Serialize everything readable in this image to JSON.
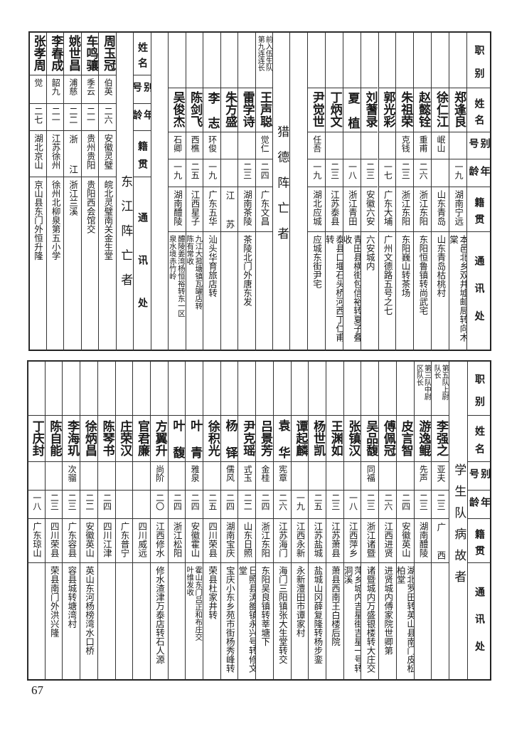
{
  "headers": {
    "position": "职别",
    "name": "姓名",
    "alias": "别号",
    "age": "年龄",
    "native_place": "籍贯",
    "address": "通讯处"
  },
  "top": {
    "groups": [
      {
        "title": "",
        "people": [
          {
            "position": "",
            "name": "郑逢良",
            "alias": "",
            "age": "一九",
            "native_place": "湖南宁远",
            "address": "本邑北乡双井墟邮局转向木棠"
          },
          {
            "position": "",
            "name": "徐仁江",
            "alias": "岷山",
            "age": "",
            "native_place": "山东青岛",
            "address": "山东青岛枯桃村"
          },
          {
            "position": "",
            "name": "赵懿铨",
            "alias": "重甫",
            "age": "二六",
            "native_place": "浙江东阳",
            "address": "东阳恒鲁镇转尚武宅"
          },
          {
            "position": "",
            "name": "朱祖荣",
            "alias": "克钱",
            "age": "二三",
            "native_place": "浙江东阳",
            "address": "东阳巍山转茶场"
          },
          {
            "position": "",
            "name": "郭光彩",
            "alias": "",
            "age": "一七",
            "native_place": "广东大埔",
            "address": "广州文德路五号之七"
          },
          {
            "position": "",
            "name": "刘蓍录",
            "alias": "",
            "age": "二三",
            "native_place": "安徽六安",
            "address": "六安城内"
          },
          {
            "position": "",
            "name": "夏植",
            "alias": "",
            "age": "一八",
            "native_place": "浙江青田",
            "address": "青田县横街包信裕转夏子叠收"
          },
          {
            "position": "",
            "name": "丁炳文",
            "alias": "",
            "age": "二三",
            "native_place": "江苏泰县",
            "address": "泰县口堰石头桥河西丁仁甫转"
          },
          {
            "position": "",
            "name": "尹觉世",
            "alias": "任吾",
            "age": "一九",
            "native_place": "湖北应城",
            "address": "应城东街尹宅"
          }
        ]
      },
      {
        "title": "猎德阵亡者",
        "people": [
          {
            "position": "前入伍生队\n第九连连长",
            "name": "王声聪",
            "alias": "觉仁",
            "age": "二四",
            "native_place": "广东文昌",
            "address": ""
          },
          {
            "position": "",
            "name": "雷学诗",
            "alias": "",
            "age": "二三",
            "native_place": "湖南茶陵",
            "address": "茶陵北门外唐东发"
          },
          {
            "position": "",
            "name": "朱方盛",
            "alias": "",
            "age": "",
            "native_place": "江苏",
            "address": ""
          },
          {
            "position": "",
            "name": "李志",
            "alias": "环俊",
            "age": "一九",
            "native_place": "广东五华",
            "address": "汕头华育旅店转"
          },
          {
            "position": "",
            "name": "陈剑飞",
            "alias": "西樵",
            "age": "二五",
            "native_place": "江西星子",
            "address": "九江大菰塘镇瓦罐店转\n陈有常收"
          },
          {
            "position": "",
            "name": "吴俊杰",
            "alias": "石卿",
            "age": "一九",
            "native_place": "湖南醴陵",
            "address": "醴陵姜湾杨恒裕转东一区\n泉水境赤竹岭"
          }
        ]
      },
      {
        "title": "东江阵亡者",
        "people": [
          {
            "name": "周玉冠",
            "alias": "伯英",
            "age": "二六",
            "native_place": "安徽灵璧",
            "address": "皖北灵璧南关金生堂"
          },
          {
            "name": "车鸣骧",
            "alias": "季云",
            "age": "二一",
            "native_place": "贵州贵阳",
            "address": "贵阳西会馆交"
          },
          {
            "name": "姚世昌",
            "alias": "浦慈",
            "age": "二二",
            "native_place": "浙江",
            "address": "浙江兰溪"
          },
          {
            "name": "李春成",
            "alias": "韶九",
            "age": "二一",
            "native_place": "江苏徐州",
            "address": "徐州北柳泉第五小学"
          },
          {
            "name": "张孝周",
            "alias": "觉",
            "age": "二七",
            "native_place": "湖北京山",
            "address": "京山县东门外恒升隆"
          }
        ]
      }
    ]
  },
  "bottom": {
    "title": "学生队病故者",
    "people": [
      {
        "position": "第五队上尉\n队长",
        "name": "李强之",
        "alias": "亚夫",
        "age": "二三",
        "native_place": "广西",
        "address": ""
      },
      {
        "position": "第三队中尉\n区队长",
        "name": "游逸鲲",
        "alias": "先声",
        "age": "二三",
        "native_place": "湖南醴陵",
        "address": ""
      },
      {
        "position": "",
        "name": "皮言智",
        "alias": "",
        "age": "二四",
        "native_place": "安徽英山",
        "address": "湖北罗田转英山县南门皮松柏堂"
      },
      {
        "position": "",
        "name": "傅佩冠",
        "alias": "",
        "age": "二六",
        "native_place": "江西进贤",
        "address": "进贤城内傅家院世卿第"
      },
      {
        "position": "",
        "name": "吴品馥",
        "alias": "同福",
        "age": "二三",
        "native_place": "浙江诸暨",
        "address": "诸暨城内万盛银楼转大庄交"
      },
      {
        "position": "",
        "name": "张镇汉",
        "alias": "",
        "age": "一八",
        "native_place": "江西萍乡",
        "address": "萍乡城内吉星街吉星一号转洞溪"
      },
      {
        "position": "",
        "name": "王渊如",
        "alias": "",
        "age": "二三",
        "native_place": "江苏萧县",
        "address": "萧县西南王白楼后院"
      },
      {
        "position": "",
        "name": "杨世凯",
        "alias": "",
        "age": "二五",
        "native_place": "江苏盐城",
        "address": "盐城山冈薛复隆转杨步銮"
      },
      {
        "position": "",
        "name": "谭起麟",
        "alias": "",
        "age": "一九",
        "native_place": "江西永新",
        "address": "永新澧田市谭家村"
      },
      {
        "position": "",
        "name": "袁华",
        "alias": "宪章",
        "age": "二六",
        "native_place": "江苏海门",
        "address": "海门三阳镇张大生堂转交"
      },
      {
        "position": "",
        "name": "吕景芳",
        "alias": "金桂",
        "age": "二四",
        "native_place": "浙江东阳",
        "address": "东阳吴良镇转莘塘下"
      },
      {
        "position": "",
        "name": "尹克瑶",
        "alias": "式玉",
        "age": "二二",
        "native_place": "山东日照",
        "address": "日照县涛雒镇永兴号转修文堂"
      },
      {
        "position": "",
        "name": "杨铎",
        "alias": "儒风",
        "age": "二四",
        "native_place": "湖南宝庆",
        "address": "宝庆小东乡苑市街杨秀峰转"
      },
      {
        "position": "",
        "name": "徐积光",
        "alias": "",
        "age": "二五",
        "native_place": "四川荣县",
        "address": "荣县杜家井转"
      },
      {
        "position": "",
        "name": "叶青",
        "alias": "雅泉",
        "age": "二四",
        "native_place": "安徽霍山",
        "address": "霍山东门吕正和布庄交\n叶维发收"
      },
      {
        "position": "",
        "name": "叶馥",
        "alias": "",
        "age": "二四",
        "native_place": "浙江松阳",
        "address": ""
      },
      {
        "position": "",
        "name": "方翼升",
        "alias": "尚阶",
        "age": "二〇",
        "native_place": "江西修水",
        "address": "修水渣津万泰店转石人源"
      },
      {
        "position": "",
        "name": "官君廉",
        "alias": "",
        "age": "",
        "native_place": "四川威远",
        "address": ""
      },
      {
        "position": "",
        "name": "庄荣汉",
        "alias": "",
        "age": "",
        "native_place": "广东普宁",
        "address": ""
      },
      {
        "position": "",
        "name": "陈琴书",
        "alias": "",
        "age": "二四",
        "native_place": "四川江津",
        "address": ""
      },
      {
        "position": "",
        "name": "徐炳昌",
        "alias": "",
        "age": "二二",
        "native_place": "安徽英山",
        "address": "英山东河杨榜湾水口桥"
      },
      {
        "position": "",
        "name": "李海玑",
        "alias": "次骝",
        "age": "二三",
        "native_place": "广东容县",
        "address": "容县城转塘湾村"
      },
      {
        "position": "",
        "name": "陈自能",
        "alias": "",
        "age": "二三",
        "native_place": "四川荣县",
        "address": "荣县南门外洪兴隆"
      },
      {
        "position": "",
        "name": "丁庆封",
        "alias": "",
        "age": "一八",
        "native_place": "广东琼山",
        "address": ""
      }
    ]
  },
  "page_number": "67"
}
